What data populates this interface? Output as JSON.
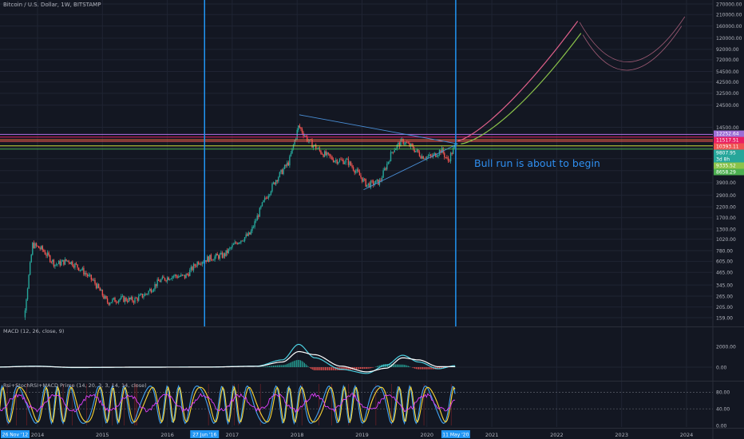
{
  "chart_title": "Bitcoin / U.S. Dollar, 1W, BITSTAMP",
  "annotation": "Bull run is about to begin",
  "colors": {
    "background": "#131722",
    "grid": "#1f2433",
    "up_candle": "#26a69a",
    "down_candle": "#ef5350",
    "vertical_marker": "#2196f3",
    "triangle": "#4a90d9",
    "projection_pink": "#e0608a",
    "projection_green": "#8bc34a",
    "macd_line": "#4dd0e1",
    "signal_line": "#ffffff",
    "rsi_line": "#e040fb",
    "stoch_k": "#42a5f5",
    "stoch_d": "#fdd835"
  },
  "price_axis_ticks": [
    "270000.00",
    "210000.00",
    "160000.00",
    "120000.00",
    "92000.00",
    "72000.00",
    "54500.00",
    "42500.00",
    "32500.00",
    "24500.00",
    "14500.00",
    "9000.00",
    "6900.00",
    "5200.00",
    "3900.00",
    "2900.00",
    "2200.00",
    "1700.00",
    "1300.00",
    "1020.00",
    "780.00",
    "605.00",
    "465.00",
    "345.00",
    "265.00",
    "205.00",
    "159.00"
  ],
  "macd_axis_ticks": [
    "2000.00",
    "0.00"
  ],
  "osc_axis_ticks": [
    "80.00",
    "40.00",
    "0.00"
  ],
  "time_axis_labels": [
    "2014",
    "2015",
    "2016",
    "2017",
    "2018",
    "2019",
    "2020",
    "2021",
    "2022",
    "2023",
    "2024"
  ],
  "marker_labels": [
    "26 Nov '12",
    "27 Jun '16",
    "11 May '20"
  ],
  "price_badges": [
    {
      "text": "12252.64",
      "color": "#9c6fd6"
    },
    {
      "text": "11517.51",
      "color": "#e91e63"
    },
    {
      "text": "10393.11",
      "color": "#ef5350"
    },
    {
      "text": "9807.95",
      "color": "#26a69a"
    },
    {
      "text": "3d 8h",
      "color": "#26a69a"
    },
    {
      "text": "9335.52",
      "color": "#8bc34a"
    },
    {
      "text": "8658.29",
      "color": "#4caf50"
    }
  ],
  "horizontal_levels": [
    {
      "price": 12252.64,
      "color": "#b36ee8"
    },
    {
      "price": 11517.51,
      "color": "#e91e63"
    },
    {
      "price": 10800,
      "color": "#ff7043"
    },
    {
      "price": 10393.11,
      "color": "#ef5350"
    },
    {
      "price": 9335.52,
      "color": "#cddc39"
    },
    {
      "price": 8658.29,
      "color": "#4caf50"
    }
  ],
  "macd_pane_label": "MACD (12, 26, close, 9)",
  "osc_pane_label": "Rsi+StochRSI+MACD Prime (14, 20, 3, 3, 14, 14, close)",
  "chart_data": [
    {
      "type": "candlestick",
      "title": "Bitcoin / U.S. Dollar, 1W, BITSTAMP",
      "y_scale": "log",
      "ylim": [
        150,
        280000
      ],
      "x_range": [
        "2013-06",
        "2024-04"
      ],
      "x": [
        2013.1,
        2013.3,
        2013.5,
        2013.7,
        2013.85,
        2014.0,
        2014.2,
        2014.4,
        2014.6,
        2014.8,
        2015.0,
        2015.2,
        2015.4,
        2015.6,
        2015.8,
        2016.0,
        2016.2,
        2016.4,
        2016.6,
        2016.8,
        2017.0,
        2017.2,
        2017.4,
        2017.6,
        2017.8,
        2017.95,
        2018.1,
        2018.3,
        2018.5,
        2018.7,
        2018.85,
        2019.0,
        2019.2,
        2019.4,
        2019.55,
        2019.7,
        2019.85,
        2020.0,
        2020.15,
        2020.25,
        2020.37
      ],
      "close": [
        30,
        130,
        95,
        130,
        900,
        800,
        560,
        620,
        500,
        370,
        230,
        250,
        240,
        280,
        380,
        430,
        420,
        600,
        660,
        700,
        960,
        1150,
        2400,
        4200,
        6400,
        15000,
        10500,
        8000,
        6700,
        6500,
        5000,
        3700,
        4000,
        8500,
        10500,
        9000,
        7300,
        7200,
        8500,
        6500,
        9800
      ],
      "annotations": [
        "Bull run is about to begin"
      ]
    },
    {
      "type": "line",
      "title": "MACD (12, 26, close, 9)",
      "ylim": [
        -900,
        3000
      ],
      "x": [
        2013.2,
        2013.9,
        2014.5,
        2015.5,
        2016.5,
        2017.3,
        2017.7,
        2017.95,
        2018.2,
        2018.6,
        2019.0,
        2019.3,
        2019.55,
        2019.8,
        2020.1,
        2020.37
      ],
      "series": [
        {
          "values": [
            0,
            100,
            -40,
            0,
            10,
            100,
            700,
            2200,
            900,
            -200,
            -600,
            200,
            1150,
            500,
            -150,
            150
          ]
        },
        {
          "values": [
            0,
            80,
            -20,
            0,
            8,
            80,
            500,
            1500,
            1200,
            100,
            -450,
            -100,
            900,
            700,
            50,
            50
          ]
        }
      ]
    },
    {
      "type": "line",
      "title": "Rsi+StochRSI+MACD Prime (14, 20, 3, 3, 14, 14, close)",
      "ylim": [
        0,
        100
      ],
      "x_range": [
        2013.1,
        2020.37
      ],
      "reference_levels": [
        80,
        40
      ]
    }
  ]
}
